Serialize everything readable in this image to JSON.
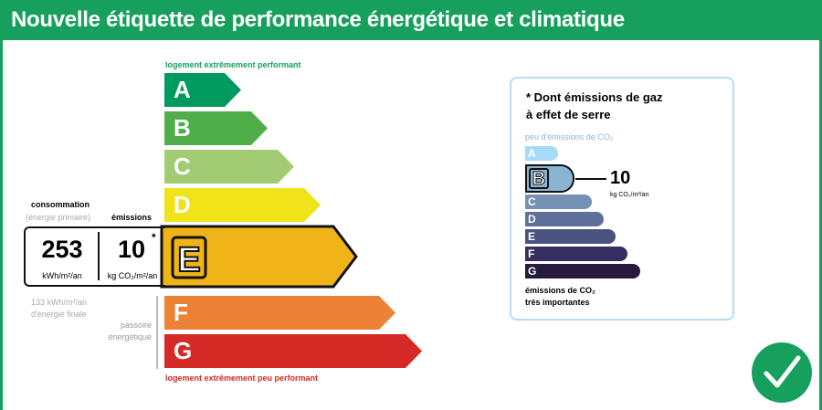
{
  "header": {
    "title": "Nouvelle étiquette de performance énergétique et climatique"
  },
  "energy": {
    "top_label": "logement extrêmement performant",
    "bottom_label": "logement extrêmement peu performant",
    "classes": [
      {
        "letter": "A",
        "color": "#009a61"
      },
      {
        "letter": "B",
        "color": "#4fae4a"
      },
      {
        "letter": "C",
        "color": "#a2cc73"
      },
      {
        "letter": "D",
        "color": "#f1e31a"
      },
      {
        "letter": "E",
        "color": "#f0b418"
      },
      {
        "letter": "F",
        "color": "#eb8236"
      },
      {
        "letter": "G",
        "color": "#d52a26"
      }
    ],
    "current_class": "E",
    "consumption_label": "consommation",
    "consumption_sub": "(énergie primaire)",
    "emissions_label": "émissions",
    "consumption_value": "253",
    "consumption_unit": "kWh/m²/an",
    "emissions_value": "10",
    "emissions_unit": "kg CO₂/m²/an",
    "asterisk": "*",
    "final_energy_line1": "133 kWh/m²/an",
    "final_energy_line2": "d'énergie finale",
    "passoire_line1": "passoire",
    "passoire_line2": "énergétique"
  },
  "ghg": {
    "title_line1": "* Dont émissions de gaz",
    "title_line2": "à effet de serre",
    "top_label": "peu d'émissions de CO₂",
    "bottom_line1": "émissions de CO₂",
    "bottom_line2": "très importantes",
    "classes": [
      {
        "letter": "A",
        "color": "#a4dbf6"
      },
      {
        "letter": "B",
        "color": "#8ab5d2"
      },
      {
        "letter": "C",
        "color": "#7592b5"
      },
      {
        "letter": "D",
        "color": "#5f709a"
      },
      {
        "letter": "E",
        "color": "#4a5280"
      },
      {
        "letter": "F",
        "color": "#362f5e"
      },
      {
        "letter": "G",
        "color": "#271a3f"
      }
    ],
    "current_class": "B",
    "value": "10",
    "unit": "kg CO₂/m²/an"
  },
  "badge": {
    "icon": "checkmark-icon",
    "color": "#17a05d"
  }
}
